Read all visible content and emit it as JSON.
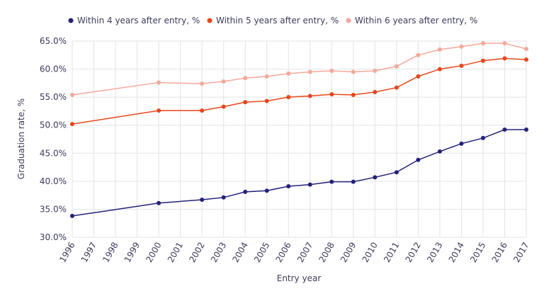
{
  "chart_data": {
    "type": "line",
    "title": "",
    "xlabel": "Entry year",
    "ylabel": "Graduation rate, %",
    "ylim": [
      30,
      65
    ],
    "xlim": [
      1996,
      2017
    ],
    "grid": true,
    "legend_position": "top",
    "y_ticks": [
      "30.0%",
      "35.0%",
      "40.0%",
      "45.0%",
      "50.0%",
      "55.0%",
      "60.0%",
      "65.0%"
    ],
    "y_tick_values": [
      30,
      35,
      40,
      45,
      50,
      55,
      60,
      65
    ],
    "x_ticks": [
      "1996",
      "1997",
      "1998",
      "1999",
      "2000",
      "2001",
      "2002",
      "2003",
      "2004",
      "2005",
      "2006",
      "2007",
      "2008",
      "2009",
      "2010",
      "2011",
      "2012",
      "2013",
      "2014",
      "2015",
      "2016",
      "2017"
    ],
    "x": [
      1996,
      2000,
      2002,
      2003,
      2004,
      2005,
      2006,
      2007,
      2008,
      2009,
      2010,
      2011,
      2012,
      2013,
      2014,
      2015,
      2016,
      2017
    ],
    "series": [
      {
        "name": "Within 4 years after entry, %",
        "color": "#23217a",
        "values": [
          33.8,
          36.1,
          36.7,
          37.1,
          38.1,
          38.3,
          39.1,
          39.4,
          39.9,
          39.9,
          40.7,
          41.6,
          43.8,
          45.3,
          46.7,
          47.7,
          49.2,
          49.2
        ]
      },
      {
        "name": "Within 5 years after entry, %",
        "color": "#e8461c",
        "values": [
          50.2,
          52.6,
          52.6,
          53.3,
          54.1,
          54.3,
          55.0,
          55.2,
          55.5,
          55.4,
          55.9,
          56.7,
          58.7,
          60.0,
          60.6,
          61.5,
          61.9,
          61.7
        ]
      },
      {
        "name": "Within 6 years after entry, %",
        "color": "#f4a89a",
        "values": [
          55.4,
          57.6,
          57.4,
          57.8,
          58.4,
          58.7,
          59.2,
          59.5,
          59.7,
          59.5,
          59.7,
          60.5,
          62.5,
          63.5,
          64.0,
          64.6,
          64.6,
          63.6
        ]
      }
    ]
  }
}
